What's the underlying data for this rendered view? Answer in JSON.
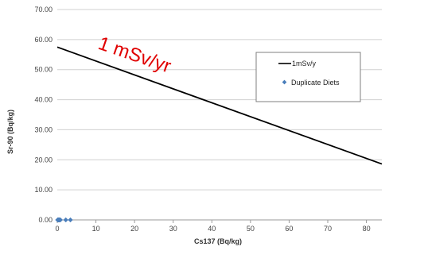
{
  "chart_data": {
    "type": "scatter",
    "xlabel": "Cs137 (Bq/kg)",
    "ylabel": "Sr-90 (Bq/kg)",
    "xlim": [
      0,
      84
    ],
    "ylim": [
      0,
      70
    ],
    "x_ticks": [
      0,
      10,
      20,
      30,
      40,
      50,
      60,
      70,
      80
    ],
    "y_ticks": [
      "0.00",
      "10.00",
      "20.00",
      "30.00",
      "40.00",
      "50.00",
      "60.00",
      "70.00"
    ],
    "y_tick_values": [
      0,
      10,
      20,
      30,
      40,
      50,
      60,
      70
    ],
    "grid": "horizontal",
    "legend_position": "right",
    "series": [
      {
        "name": "1mSv/y",
        "kind": "line",
        "color": "#000000",
        "x": [
          0,
          84
        ],
        "y": [
          57.5,
          18.6
        ]
      },
      {
        "name": "Duplicate Diets",
        "kind": "scatter",
        "color": "#4a7ebb",
        "x": [
          0.1,
          0.2,
          0.3,
          0.4,
          0.5,
          0.6,
          0.8,
          2.2,
          3.4
        ],
        "y": [
          0,
          0,
          0,
          0,
          0,
          0,
          0,
          0,
          0
        ]
      }
    ],
    "annotation": {
      "text": "1 mSv/yr",
      "color": "#e00000"
    }
  }
}
